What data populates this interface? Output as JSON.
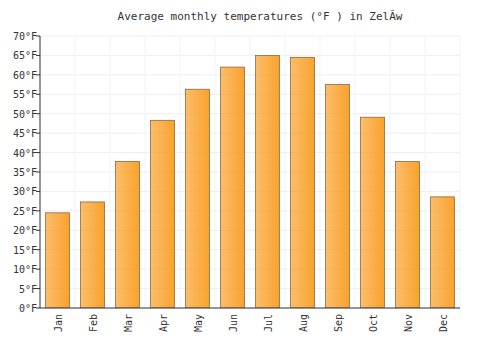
{
  "chart_data": {
    "type": "bar",
    "title": "Average monthly temperatures (°F ) in ZelĂw",
    "categories": [
      "Jan",
      "Feb",
      "Mar",
      "Apr",
      "May",
      "Jun",
      "Jul",
      "Aug",
      "Sep",
      "Oct",
      "Nov",
      "Dec"
    ],
    "values": [
      24.5,
      27.3,
      37.7,
      48.3,
      56.3,
      62,
      65,
      64.5,
      57.5,
      49.1,
      37.7,
      28.6
    ],
    "color": "#f9a22c",
    "ylim": [
      0,
      70
    ],
    "yticks": [
      {
        "value": 0,
        "label": "0°F"
      },
      {
        "value": 5,
        "label": "5°F"
      },
      {
        "value": 10,
        "label": "10°F"
      },
      {
        "value": 15,
        "label": "15°F"
      },
      {
        "value": 20,
        "label": "20°F"
      },
      {
        "value": 25,
        "label": "25°F"
      },
      {
        "value": 30,
        "label": "30°F"
      },
      {
        "value": 35,
        "label": "35°F"
      },
      {
        "value": 40,
        "label": "40°F"
      },
      {
        "value": 45,
        "label": "45°F"
      },
      {
        "value": 50,
        "label": "50°F"
      },
      {
        "value": 55,
        "label": "55°F"
      },
      {
        "value": 60,
        "label": "60°F"
      },
      {
        "value": 65,
        "label": "65°F"
      },
      {
        "value": 70,
        "label": "70°F"
      }
    ],
    "grid": true
  }
}
